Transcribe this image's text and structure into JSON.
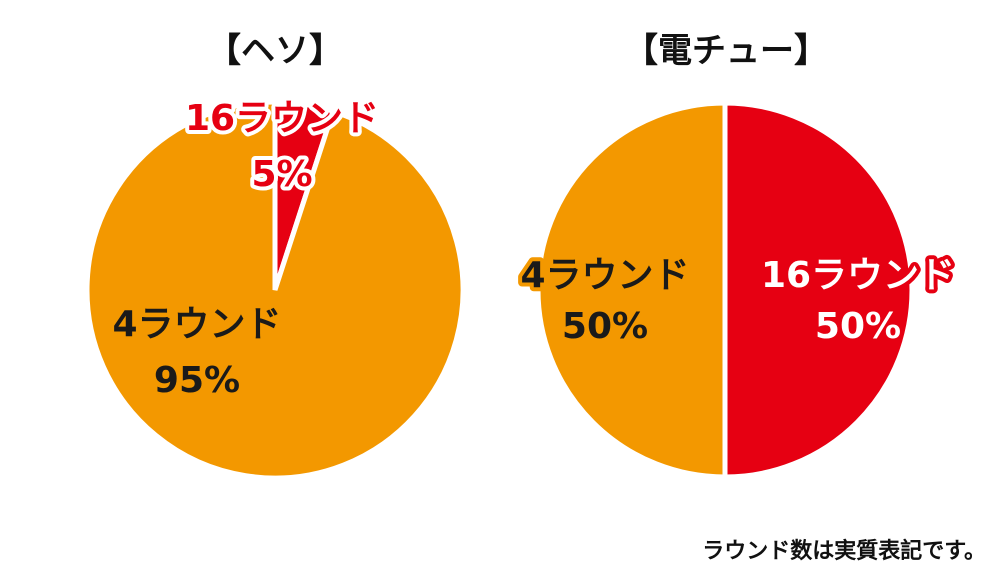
{
  "chart_data": [
    {
      "type": "pie",
      "title": "【ヘソ】",
      "slices": [
        {
          "label": "4ラウンド",
          "value": 95,
          "value_text": "95%",
          "color": "#f39800"
        },
        {
          "label": "16ラウンド",
          "value": 5,
          "value_text": "5%",
          "color": "#e60012"
        }
      ]
    },
    {
      "type": "pie",
      "title": "【電チュー】",
      "slices": [
        {
          "label": "4ラウンド",
          "value": 50,
          "value_text": "50%",
          "color": "#f39800"
        },
        {
          "label": "16ラウンド",
          "value": 50,
          "value_text": "50%",
          "color": "#e60012"
        }
      ]
    }
  ],
  "footnote": "ラウンド数は実質表記です。"
}
